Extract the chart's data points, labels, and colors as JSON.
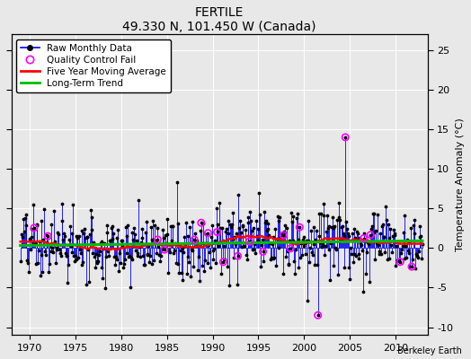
{
  "title": "FERTILE",
  "subtitle": "49.330 N, 101.450 W (Canada)",
  "ylabel_right": "Temperature Anomaly (°C)",
  "credit": "Berkeley Earth",
  "xlim": [
    1968.0,
    2013.5
  ],
  "ylim": [
    -11,
    27
  ],
  "yticks": [
    -10,
    -5,
    0,
    5,
    10,
    15,
    20,
    25
  ],
  "xticks": [
    1970,
    1975,
    1980,
    1985,
    1990,
    1995,
    2000,
    2005,
    2010
  ],
  "line_color": "#0000ff",
  "dot_color": "#000000",
  "qc_color": "#ff00ff",
  "ma_color": "#ff0000",
  "trend_color": "#00bb00",
  "background": "#e8e8e8"
}
